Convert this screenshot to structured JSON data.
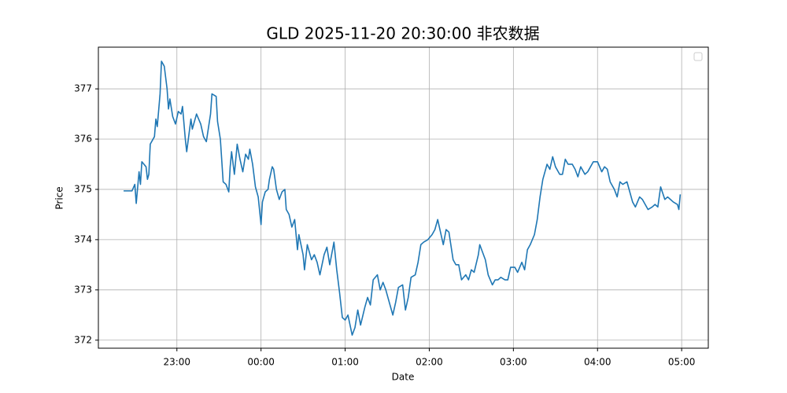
{
  "chart_data": {
    "type": "line",
    "title": "GLD 2025-11-20 20:30:00 非农数据",
    "x_label": "Date",
    "y_label": "Price",
    "x": [
      "22:22",
      "22:28",
      "22:30",
      "22:31",
      "22:33",
      "22:34",
      "22:35",
      "22:38",
      "22:39",
      "22:40",
      "22:41",
      "22:44",
      "22:45",
      "22:46",
      "22:48",
      "22:49",
      "22:51",
      "22:53",
      "22:54",
      "22:55",
      "22:57",
      "22:59",
      "23:01",
      "23:03",
      "23:04",
      "23:06",
      "23:07",
      "23:10",
      "23:11",
      "23:14",
      "23:17",
      "23:19",
      "23:21",
      "23:24",
      "23:25",
      "23:28",
      "23:29",
      "23:31",
      "23:33",
      "23:35",
      "23:37",
      "23:38",
      "23:39",
      "23:41",
      "23:43",
      "23:45",
      "23:47",
      "23:49",
      "23:51",
      "23:52",
      "23:54",
      "23:56",
      "23:58",
      "00:00",
      "00:01",
      "00:03",
      "00:05",
      "00:06",
      "00:08",
      "00:09",
      "00:11",
      "00:13",
      "00:15",
      "00:17",
      "00:18",
      "00:20",
      "00:22",
      "00:24",
      "00:26",
      "00:27",
      "00:30",
      "00:31",
      "00:33",
      "00:36",
      "00:38",
      "00:40",
      "00:42",
      "00:45",
      "00:47",
      "00:49",
      "00:52",
      "00:54",
      "00:56",
      "00:58",
      "01:00",
      "01:02",
      "01:05",
      "01:07",
      "01:09",
      "01:11",
      "01:14",
      "01:16",
      "01:18",
      "01:20",
      "01:23",
      "01:25",
      "01:27",
      "01:29",
      "01:32",
      "01:34",
      "01:36",
      "01:38",
      "01:41",
      "01:43",
      "01:45",
      "01:47",
      "01:50",
      "01:52",
      "01:54",
      "01:56",
      "01:59",
      "02:02",
      "02:04",
      "02:06",
      "02:08",
      "02:10",
      "02:12",
      "02:14",
      "02:17",
      "02:19",
      "02:21",
      "02:23",
      "02:26",
      "02:28",
      "02:30",
      "02:32",
      "02:35",
      "02:36",
      "02:38",
      "02:40",
      "02:42",
      "02:45",
      "02:47",
      "02:49",
      "02:51",
      "02:54",
      "02:56",
      "02:58",
      "03:01",
      "03:03",
      "03:06",
      "03:08",
      "03:10",
      "03:12",
      "03:15",
      "03:17",
      "03:19",
      "03:21",
      "03:24",
      "03:26",
      "03:28",
      "03:30",
      "03:33",
      "03:35",
      "03:37",
      "03:39",
      "03:42",
      "03:44",
      "03:46",
      "03:48",
      "03:51",
      "03:53",
      "03:55",
      "03:57",
      "04:00",
      "04:03",
      "04:05",
      "04:07",
      "04:09",
      "04:12",
      "04:14",
      "04:16",
      "04:18",
      "04:21",
      "04:23",
      "04:25",
      "04:27",
      "04:30",
      "04:32",
      "04:34",
      "04:36",
      "04:39",
      "04:41",
      "04:43",
      "04:45",
      "04:48",
      "04:50",
      "04:52",
      "04:54",
      "04:57",
      "04:58",
      "04:59"
    ],
    "series": [
      {
        "color": "#1f77b4",
        "values": [
          374.97,
          374.97,
          375.1,
          374.72,
          375.35,
          375.1,
          375.55,
          375.45,
          375.2,
          375.3,
          375.9,
          376.05,
          376.4,
          376.25,
          376.9,
          377.55,
          377.45,
          377.0,
          376.6,
          376.8,
          376.45,
          376.3,
          376.55,
          376.5,
          376.65,
          376.0,
          375.75,
          376.4,
          376.2,
          376.5,
          376.3,
          376.05,
          375.95,
          376.5,
          376.9,
          376.85,
          376.35,
          376.0,
          375.15,
          375.1,
          374.95,
          375.45,
          375.75,
          375.3,
          375.9,
          375.6,
          375.35,
          375.7,
          375.6,
          375.8,
          375.5,
          375.05,
          374.85,
          374.3,
          374.75,
          374.95,
          375.0,
          375.2,
          375.45,
          375.4,
          375.0,
          374.8,
          374.95,
          375.0,
          374.6,
          374.5,
          374.25,
          374.4,
          373.8,
          374.1,
          373.7,
          373.4,
          373.9,
          373.6,
          373.7,
          373.55,
          373.3,
          373.7,
          373.85,
          373.5,
          373.95,
          373.4,
          372.95,
          372.45,
          372.4,
          372.5,
          372.1,
          372.25,
          372.6,
          372.3,
          372.65,
          372.85,
          372.7,
          373.2,
          373.3,
          373.0,
          373.15,
          373.0,
          372.7,
          372.5,
          372.75,
          373.05,
          373.1,
          372.6,
          372.85,
          373.25,
          373.3,
          373.55,
          373.9,
          373.95,
          374.0,
          374.1,
          374.2,
          374.4,
          374.15,
          373.9,
          374.2,
          374.15,
          373.6,
          373.5,
          373.5,
          373.2,
          373.3,
          373.2,
          373.4,
          373.35,
          373.7,
          373.9,
          373.75,
          373.6,
          373.3,
          373.1,
          373.2,
          373.2,
          373.25,
          373.2,
          373.2,
          373.45,
          373.45,
          373.35,
          373.55,
          373.4,
          373.8,
          373.9,
          374.1,
          374.4,
          374.85,
          375.2,
          375.5,
          375.4,
          375.65,
          375.45,
          375.3,
          375.3,
          375.6,
          375.5,
          375.5,
          375.4,
          375.25,
          375.45,
          375.3,
          375.35,
          375.45,
          375.55,
          375.55,
          375.35,
          375.45,
          375.4,
          375.15,
          375.0,
          374.85,
          375.15,
          375.1,
          375.15,
          374.95,
          374.75,
          374.65,
          374.85,
          374.8,
          374.7,
          374.6,
          374.65,
          374.7,
          374.65,
          375.05,
          374.8,
          374.85,
          374.8,
          374.75,
          374.7,
          374.6,
          374.9
        ]
      }
    ],
    "xlim": [
      "22:04",
      "05:19"
    ],
    "xticks": [
      "23:00",
      "00:00",
      "01:00",
      "02:00",
      "03:00",
      "04:00",
      "05:00"
    ],
    "ylim": [
      371.84,
      377.83
    ],
    "yticks": [
      372,
      373,
      374,
      375,
      376,
      377
    ],
    "grid": true
  }
}
